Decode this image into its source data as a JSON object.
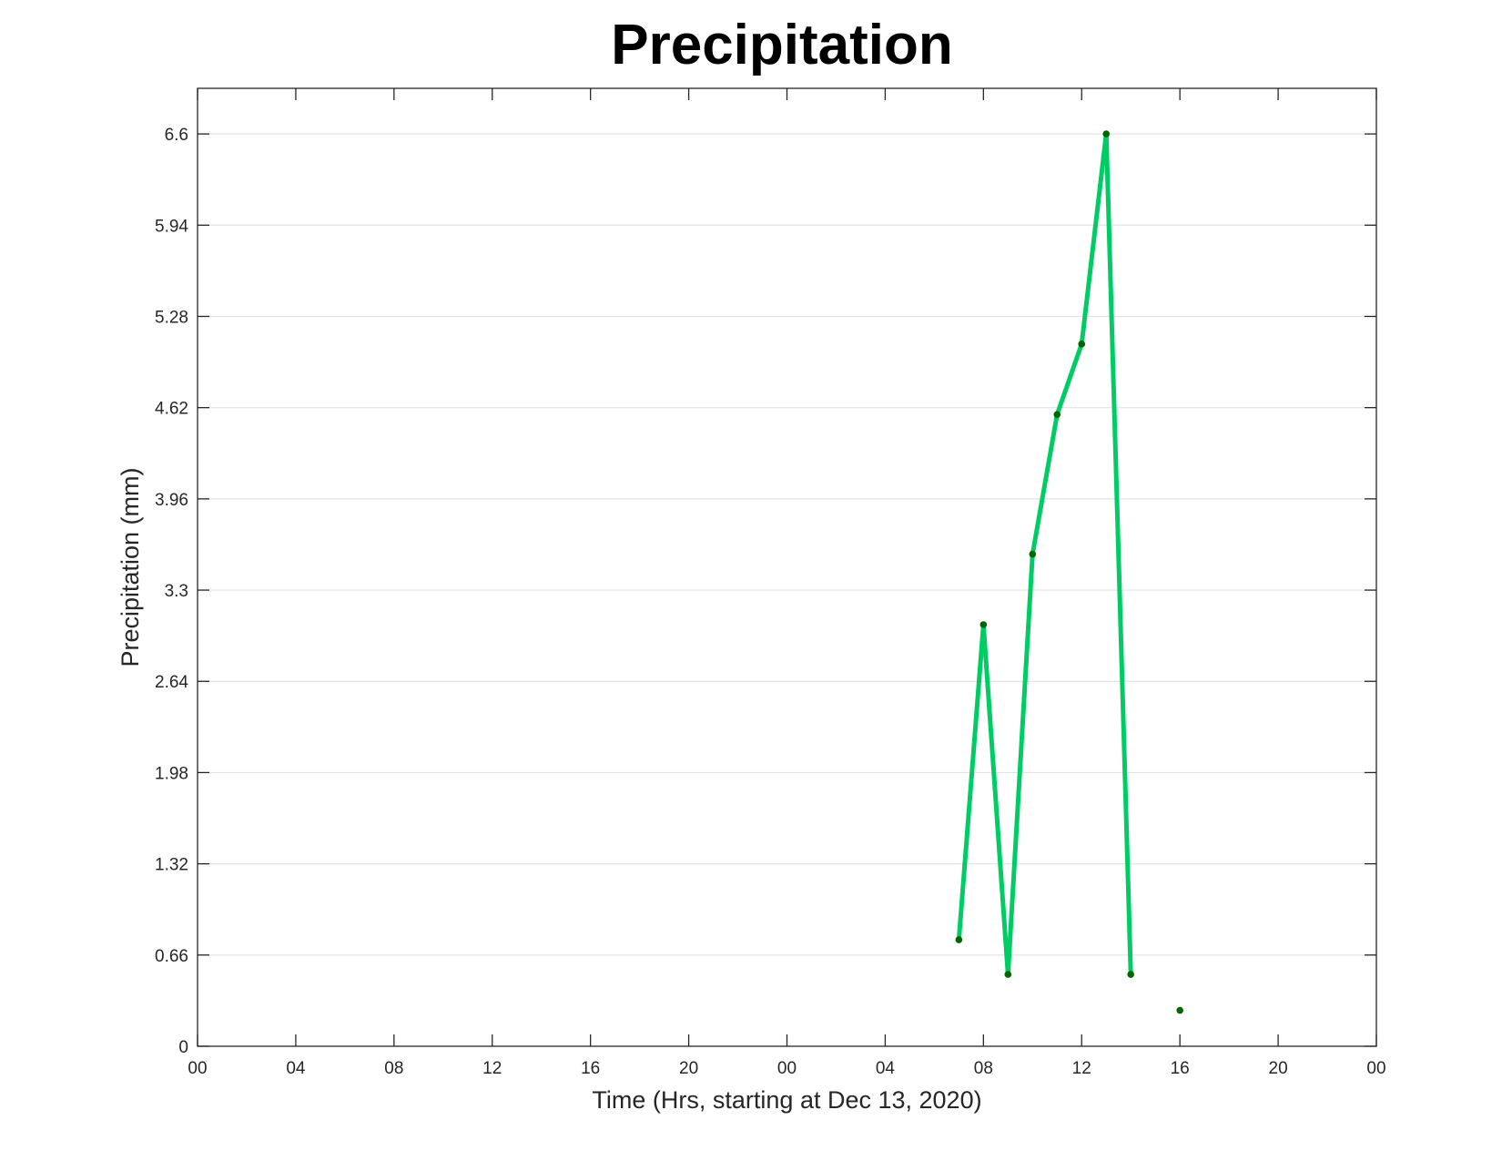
{
  "chart_data": {
    "type": "line",
    "title": "Precipitation",
    "xlabel": "Time (Hrs, starting at Dec 13, 2020)",
    "ylabel": "Precipitation (mm)",
    "x_unit": "datetime",
    "xlim": [
      "2020-12-13 00:00",
      "2020-12-15 00:00"
    ],
    "ylim": [
      0,
      6.93
    ],
    "x_ticks": [
      {
        "at": "2020-12-13 00:00",
        "label": "00"
      },
      {
        "at": "2020-12-13 04:00",
        "label": "04"
      },
      {
        "at": "2020-12-13 08:00",
        "label": "08"
      },
      {
        "at": "2020-12-13 12:00",
        "label": "12"
      },
      {
        "at": "2020-12-13 16:00",
        "label": "16"
      },
      {
        "at": "2020-12-13 20:00",
        "label": "20"
      },
      {
        "at": "2020-12-14 00:00",
        "label": "00"
      },
      {
        "at": "2020-12-14 04:00",
        "label": "04"
      },
      {
        "at": "2020-12-14 08:00",
        "label": "08"
      },
      {
        "at": "2020-12-14 12:00",
        "label": "12"
      },
      {
        "at": "2020-12-14 16:00",
        "label": "16"
      },
      {
        "at": "2020-12-14 20:00",
        "label": "20"
      },
      {
        "at": "2020-12-15 00:00",
        "label": "00"
      }
    ],
    "y_ticks": [
      {
        "value": 0,
        "label": "0"
      },
      {
        "value": 0.66,
        "label": "0.66"
      },
      {
        "value": 1.32,
        "label": "1.32"
      },
      {
        "value": 1.98,
        "label": "1.98"
      },
      {
        "value": 2.64,
        "label": "2.64"
      },
      {
        "value": 3.3,
        "label": "3.3"
      },
      {
        "value": 3.96,
        "label": "3.96"
      },
      {
        "value": 4.62,
        "label": "4.62"
      },
      {
        "value": 5.28,
        "label": "5.28"
      },
      {
        "value": 5.94,
        "label": "5.94"
      },
      {
        "value": 6.6,
        "label": "6.6"
      }
    ],
    "grid": "horizontal",
    "series": [
      {
        "points": [
          {
            "x": "2020-12-14 07:00",
            "y": 0.77
          },
          {
            "x": "2020-12-14 08:00",
            "y": 3.05
          },
          {
            "x": "2020-12-14 09:00",
            "y": 0.52
          },
          {
            "x": "2020-12-14 10:00",
            "y": 3.56
          },
          {
            "x": "2020-12-14 11:00",
            "y": 4.57
          },
          {
            "x": "2020-12-14 12:00",
            "y": 5.08
          },
          {
            "x": "2020-12-14 13:00",
            "y": 6.6
          },
          {
            "x": "2020-12-14 14:00",
            "y": 0.52
          },
          {
            "x": "2020-12-14 16:00",
            "y": 0.26
          }
        ],
        "line_color": "#00CC66",
        "marker_color": "#006600"
      }
    ]
  }
}
